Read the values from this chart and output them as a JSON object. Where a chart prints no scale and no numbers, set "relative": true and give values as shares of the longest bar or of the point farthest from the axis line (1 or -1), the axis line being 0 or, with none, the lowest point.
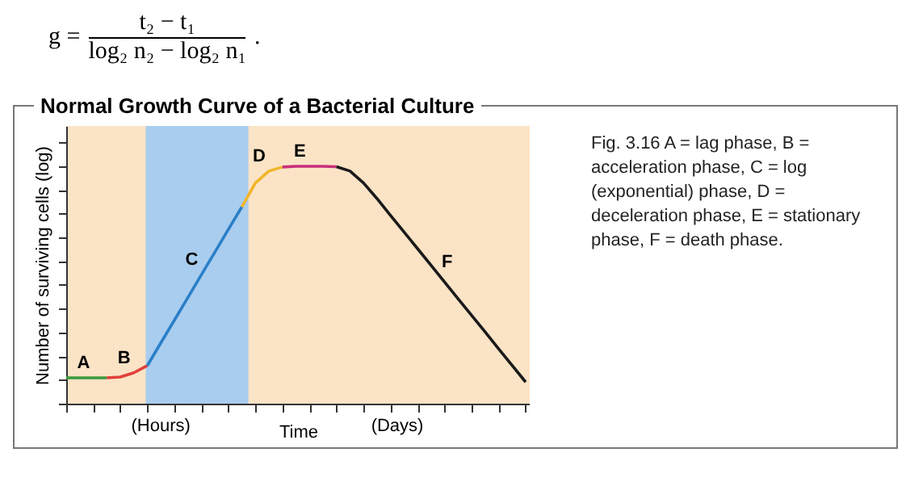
{
  "chart_data": {
    "type": "line",
    "relative": true,
    "title": "Normal Growth Curve of a Bacterial Culture",
    "xlabel": "Time",
    "ylabel": "Number of surviving cells (log)",
    "categories": [
      null,
      null,
      null,
      null,
      null,
      null,
      null,
      null,
      null,
      null,
      null,
      null,
      null,
      null,
      null,
      null,
      null,
      null,
      null,
      null,
      null,
      null,
      null,
      null,
      null,
      null,
      null,
      null,
      null,
      null,
      null,
      null,
      null,
      null,
      null
    ],
    "series": [
      {
        "name": "A",
        "color": "#3a9a3a",
        "values": [
          0.109,
          0.109,
          0.109,
          0.109,
          null,
          null,
          null,
          null,
          null,
          null,
          null,
          null,
          null,
          null,
          null,
          null,
          null,
          null,
          null,
          null,
          null,
          null,
          null,
          null,
          null,
          null,
          null,
          null,
          null,
          null,
          null,
          null,
          null,
          null,
          null
        ]
      },
      {
        "name": "B",
        "color": "#e0403a",
        "values": [
          null,
          null,
          null,
          0.109,
          0.112,
          0.13,
          0.16,
          null,
          null,
          null,
          null,
          null,
          null,
          null,
          null,
          null,
          null,
          null,
          null,
          null,
          null,
          null,
          null,
          null,
          null,
          null,
          null,
          null,
          null,
          null,
          null,
          null,
          null,
          null,
          null
        ]
      },
      {
        "name": "C",
        "color": "#2a7fc8",
        "values": [
          null,
          null,
          null,
          null,
          null,
          null,
          0.16,
          0.256,
          0.351,
          0.447,
          0.543,
          0.638,
          0.734,
          0.829,
          null,
          null,
          null,
          null,
          null,
          null,
          null,
          null,
          null,
          null,
          null,
          null,
          null,
          null,
          null,
          null,
          null,
          null,
          null,
          null,
          null
        ]
      },
      {
        "name": "D",
        "color": "#f0b52a",
        "values": [
          null,
          null,
          null,
          null,
          null,
          null,
          null,
          null,
          null,
          null,
          null,
          null,
          null,
          0.829,
          0.93,
          0.98,
          0.997,
          null,
          null,
          null,
          null,
          null,
          null,
          null,
          null,
          null,
          null,
          null,
          null,
          null,
          null,
          null,
          null,
          null,
          null
        ]
      },
      {
        "name": "E",
        "color": "#c8307a",
        "values": [
          null,
          null,
          null,
          null,
          null,
          null,
          null,
          null,
          null,
          null,
          null,
          null,
          null,
          null,
          null,
          null,
          0.997,
          1,
          1,
          1,
          0.998,
          null,
          null,
          null,
          null,
          null,
          null,
          null,
          null,
          null,
          null,
          null,
          null,
          null,
          null
        ]
      },
      {
        "name": "F",
        "color": "#1a1a1a",
        "values": [
          null,
          null,
          null,
          null,
          null,
          null,
          null,
          null,
          null,
          null,
          null,
          null,
          null,
          null,
          null,
          null,
          null,
          null,
          null,
          null,
          0.998,
          0.98,
          0.93,
          0.864,
          0.793,
          0.723,
          0.653,
          0.583,
          0.512,
          0.442,
          0.372,
          0.302,
          0.231,
          0.161,
          0.091
        ]
      }
    ],
    "line_style": "solid",
    "grid": false,
    "legend": false,
    "annotations": [
      "g =",
      "t₂ − t₁",
      "log₂ n₂ − log₂ n₁",
      ".",
      "(Hours)",
      "(Days)",
      "Fig. 3.16  A = lag phase, B = acceleration phase, C = log (exponential) phase, D = deceleration phase, E = stationary phase, F = death phase."
    ]
  }
}
